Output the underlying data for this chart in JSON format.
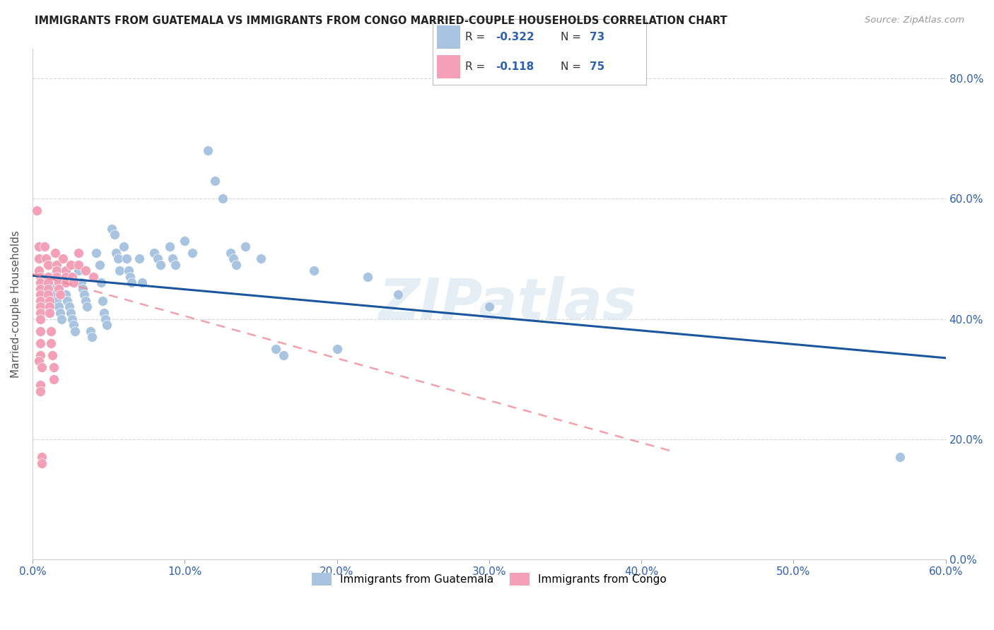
{
  "title": "IMMIGRANTS FROM GUATEMALA VS IMMIGRANTS FROM CONGO MARRIED-COUPLE HOUSEHOLDS CORRELATION CHART",
  "source": "Source: ZipAtlas.com",
  "ylabel": "Married-couple Households",
  "xlim": [
    0.0,
    0.6
  ],
  "ylim": [
    0.0,
    0.85
  ],
  "xtick_vals": [
    0.0,
    0.1,
    0.2,
    0.3,
    0.4,
    0.5,
    0.6
  ],
  "xtick_labels": [
    "0.0%",
    "10.0%",
    "20.0%",
    "30.0%",
    "40.0%",
    "50.0%",
    "60.0%"
  ],
  "ytick_vals": [
    0.0,
    0.2,
    0.4,
    0.6,
    0.8
  ],
  "ytick_labels": [
    "0.0%",
    "20.0%",
    "40.0%",
    "60.0%",
    "80.0%"
  ],
  "guatemala_color": "#a8c4e0",
  "guatemala_line_color": "#1a56a0",
  "congo_color": "#f4a0b8",
  "congo_line_color": "#f08090",
  "watermark": "ZIPatlas",
  "scatter_guatemala": [
    [
      0.005,
      0.47
    ],
    [
      0.005,
      0.46
    ],
    [
      0.007,
      0.45
    ],
    [
      0.009,
      0.44
    ],
    [
      0.01,
      0.43
    ],
    [
      0.012,
      0.47
    ],
    [
      0.013,
      0.46
    ],
    [
      0.014,
      0.45
    ],
    [
      0.015,
      0.44
    ],
    [
      0.016,
      0.43
    ],
    [
      0.017,
      0.42
    ],
    [
      0.018,
      0.41
    ],
    [
      0.019,
      0.4
    ],
    [
      0.02,
      0.46
    ],
    [
      0.022,
      0.44
    ],
    [
      0.023,
      0.43
    ],
    [
      0.024,
      0.42
    ],
    [
      0.025,
      0.41
    ],
    [
      0.026,
      0.4
    ],
    [
      0.027,
      0.39
    ],
    [
      0.028,
      0.38
    ],
    [
      0.03,
      0.48
    ],
    [
      0.032,
      0.46
    ],
    [
      0.033,
      0.45
    ],
    [
      0.034,
      0.44
    ],
    [
      0.035,
      0.43
    ],
    [
      0.036,
      0.42
    ],
    [
      0.038,
      0.38
    ],
    [
      0.039,
      0.37
    ],
    [
      0.042,
      0.51
    ],
    [
      0.044,
      0.49
    ],
    [
      0.045,
      0.46
    ],
    [
      0.046,
      0.43
    ],
    [
      0.047,
      0.41
    ],
    [
      0.048,
      0.4
    ],
    [
      0.049,
      0.39
    ],
    [
      0.052,
      0.55
    ],
    [
      0.054,
      0.54
    ],
    [
      0.055,
      0.51
    ],
    [
      0.056,
      0.5
    ],
    [
      0.057,
      0.48
    ],
    [
      0.06,
      0.52
    ],
    [
      0.062,
      0.5
    ],
    [
      0.063,
      0.48
    ],
    [
      0.064,
      0.47
    ],
    [
      0.065,
      0.46
    ],
    [
      0.07,
      0.5
    ],
    [
      0.072,
      0.46
    ],
    [
      0.08,
      0.51
    ],
    [
      0.082,
      0.5
    ],
    [
      0.084,
      0.49
    ],
    [
      0.09,
      0.52
    ],
    [
      0.092,
      0.5
    ],
    [
      0.094,
      0.49
    ],
    [
      0.1,
      0.53
    ],
    [
      0.105,
      0.51
    ],
    [
      0.115,
      0.68
    ],
    [
      0.12,
      0.63
    ],
    [
      0.125,
      0.6
    ],
    [
      0.13,
      0.51
    ],
    [
      0.132,
      0.5
    ],
    [
      0.134,
      0.49
    ],
    [
      0.14,
      0.52
    ],
    [
      0.15,
      0.5
    ],
    [
      0.16,
      0.35
    ],
    [
      0.165,
      0.34
    ],
    [
      0.185,
      0.48
    ],
    [
      0.2,
      0.35
    ],
    [
      0.22,
      0.47
    ],
    [
      0.24,
      0.44
    ],
    [
      0.3,
      0.42
    ],
    [
      0.57,
      0.17
    ]
  ],
  "scatter_congo": [
    [
      0.003,
      0.58
    ],
    [
      0.004,
      0.52
    ],
    [
      0.004,
      0.5
    ],
    [
      0.004,
      0.48
    ],
    [
      0.005,
      0.47
    ],
    [
      0.005,
      0.46
    ],
    [
      0.005,
      0.45
    ],
    [
      0.005,
      0.44
    ],
    [
      0.005,
      0.43
    ],
    [
      0.005,
      0.42
    ],
    [
      0.005,
      0.41
    ],
    [
      0.005,
      0.4
    ],
    [
      0.005,
      0.38
    ],
    [
      0.005,
      0.36
    ],
    [
      0.005,
      0.34
    ],
    [
      0.005,
      0.29
    ],
    [
      0.005,
      0.28
    ],
    [
      0.006,
      0.17
    ],
    [
      0.006,
      0.16
    ],
    [
      0.008,
      0.52
    ],
    [
      0.009,
      0.5
    ],
    [
      0.01,
      0.49
    ],
    [
      0.01,
      0.47
    ],
    [
      0.01,
      0.46
    ],
    [
      0.01,
      0.45
    ],
    [
      0.01,
      0.44
    ],
    [
      0.011,
      0.43
    ],
    [
      0.011,
      0.42
    ],
    [
      0.011,
      0.41
    ],
    [
      0.012,
      0.38
    ],
    [
      0.012,
      0.36
    ],
    [
      0.013,
      0.34
    ],
    [
      0.014,
      0.32
    ],
    [
      0.014,
      0.3
    ],
    [
      0.015,
      0.51
    ],
    [
      0.016,
      0.49
    ],
    [
      0.016,
      0.48
    ],
    [
      0.016,
      0.47
    ],
    [
      0.017,
      0.46
    ],
    [
      0.017,
      0.45
    ],
    [
      0.018,
      0.44
    ],
    [
      0.02,
      0.5
    ],
    [
      0.022,
      0.48
    ],
    [
      0.022,
      0.47
    ],
    [
      0.022,
      0.46
    ],
    [
      0.025,
      0.49
    ],
    [
      0.026,
      0.47
    ],
    [
      0.027,
      0.46
    ],
    [
      0.03,
      0.51
    ],
    [
      0.03,
      0.49
    ],
    [
      0.035,
      0.48
    ],
    [
      0.04,
      0.47
    ],
    [
      0.004,
      0.33
    ],
    [
      0.006,
      0.32
    ]
  ],
  "guatemala_trendline": [
    [
      0.0,
      0.472
    ],
    [
      0.6,
      0.335
    ]
  ],
  "congo_trendline": [
    [
      0.0,
      0.475
    ],
    [
      0.42,
      0.18
    ]
  ],
  "background_color": "#ffffff",
  "grid_color": "#d8d8d8"
}
